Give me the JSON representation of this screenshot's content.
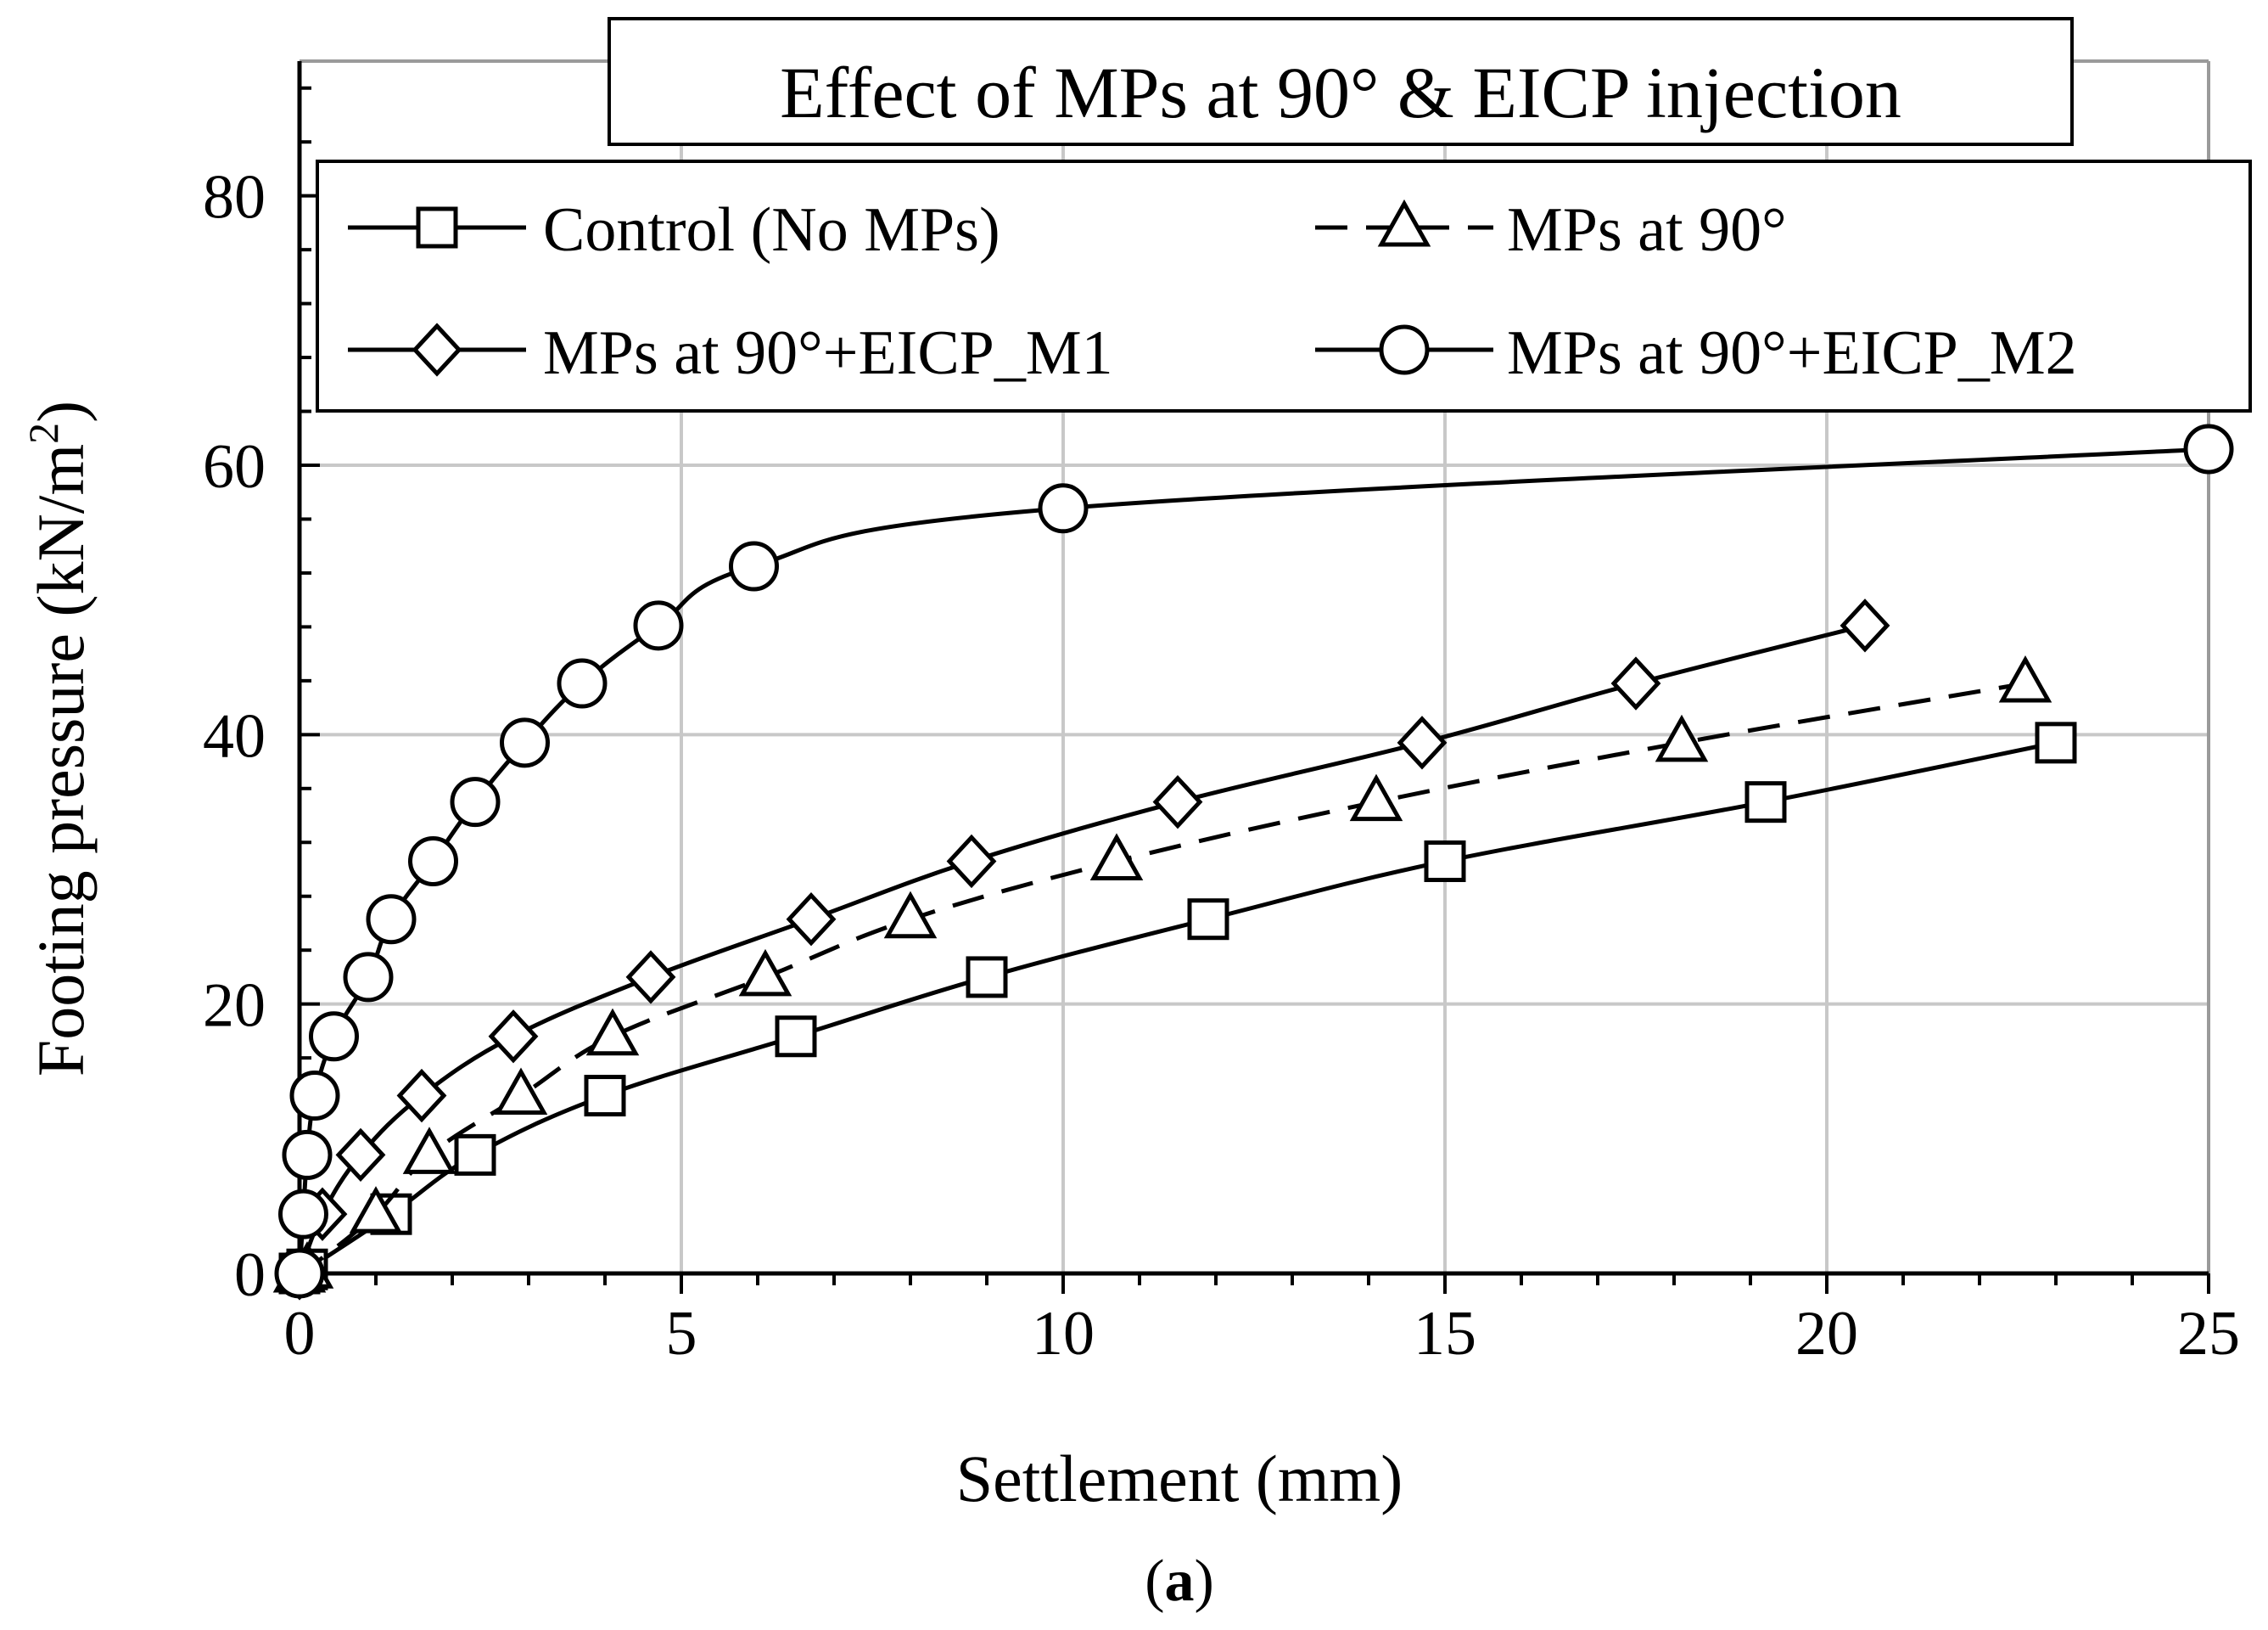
{
  "chart_data": {
    "type": "line",
    "title": "Effect of MPs at 90° & EICP injection",
    "xlabel": "Settlement (mm)",
    "ylabel": "Footing pressure (kN/m²)",
    "ylabel_main": "Footing pressure (kN/m",
    "ylabel_sup": "2",
    "ylabel_end": ")",
    "caption_open": "(",
    "caption_letter": "a",
    "caption_close": ")",
    "xlim": [
      0,
      25
    ],
    "ylim": [
      0,
      90
    ],
    "x_ticks": [
      0,
      5,
      10,
      15,
      20,
      25
    ],
    "y_ticks": [
      0,
      20,
      40,
      60,
      80
    ],
    "grid": true,
    "legend_position": "top",
    "series": [
      {
        "name": "Control (No MPs)",
        "marker": "square",
        "dash": false,
        "x": [
          0,
          0.1,
          1.2,
          2.3,
          4.0,
          6.5,
          9.0,
          11.9,
          15.0,
          19.2,
          23.0
        ],
        "y": [
          0,
          0.3,
          4.4,
          8.8,
          13.2,
          17.6,
          22.0,
          26.3,
          30.6,
          35.0,
          39.4
        ]
      },
      {
        "name": "MPs at 90°",
        "marker": "triangle",
        "dash": true,
        "x": [
          0,
          0.1,
          1.0,
          1.7,
          2.9,
          4.1,
          6.1,
          8.0,
          10.7,
          14.1,
          18.1,
          22.6
        ],
        "y": [
          0,
          0.3,
          4.4,
          8.8,
          13.2,
          17.6,
          22.0,
          26.3,
          30.6,
          35.0,
          39.4,
          43.8
        ]
      },
      {
        "name": "MPs at 90°+EICP_M1",
        "marker": "diamond",
        "dash": false,
        "x": [
          0,
          0.3,
          0.8,
          1.6,
          2.8,
          4.6,
          6.7,
          8.8,
          11.5,
          14.7,
          17.5,
          20.5
        ],
        "y": [
          0,
          4.4,
          8.8,
          13.2,
          17.6,
          22.0,
          26.3,
          30.6,
          35.0,
          39.4,
          43.8,
          48.1
        ]
      },
      {
        "name": "MPs at 90°+EICP_M2",
        "marker": "circle",
        "dash": false,
        "x": [
          0,
          0.05,
          0.1,
          0.2,
          0.45,
          0.9,
          1.2,
          1.75,
          2.3,
          2.95,
          3.7,
          4.7,
          5.95,
          10.0,
          25.0
        ],
        "y": [
          0,
          4.4,
          8.8,
          13.2,
          17.6,
          22.0,
          26.3,
          30.6,
          35.0,
          39.4,
          43.8,
          48.1,
          52.5,
          56.8,
          61.2
        ]
      }
    ]
  }
}
